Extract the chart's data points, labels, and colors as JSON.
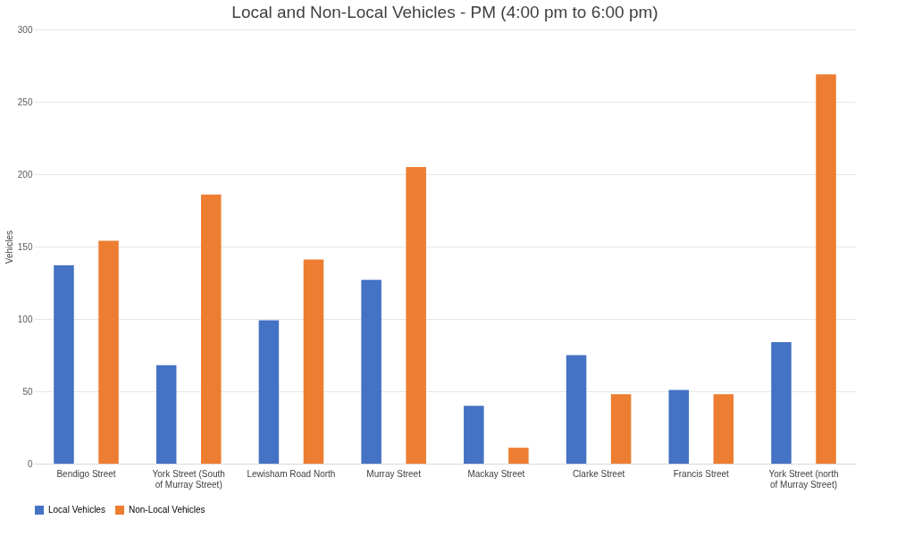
{
  "chart_data": {
    "type": "bar",
    "title": "Local and Non-Local Vehicles - PM (4:00 pm to 6:00 pm)",
    "ylabel": "Vehicles",
    "categories": [
      "Bendigo Street",
      "York Street (South of Murray Street)",
      "Lewisham Road North",
      "Murray Street",
      "Mackay Street",
      "Clarke Street",
      "Francis Street",
      "York Street (north of Murray Street)"
    ],
    "series": [
      {
        "name": "Local Vehicles",
        "color": "#4472c4",
        "values": [
          137,
          68,
          99,
          127,
          40,
          75,
          51,
          84
        ]
      },
      {
        "name": "Non-Local Vehicles",
        "color": "#ed7d31",
        "values": [
          154,
          186,
          141,
          205,
          11,
          48,
          48,
          269
        ]
      }
    ],
    "ylim": [
      0,
      300
    ],
    "yticks": [
      0,
      50,
      100,
      150,
      200,
      250,
      300
    ],
    "grid": "y",
    "legend": "bottom"
  }
}
